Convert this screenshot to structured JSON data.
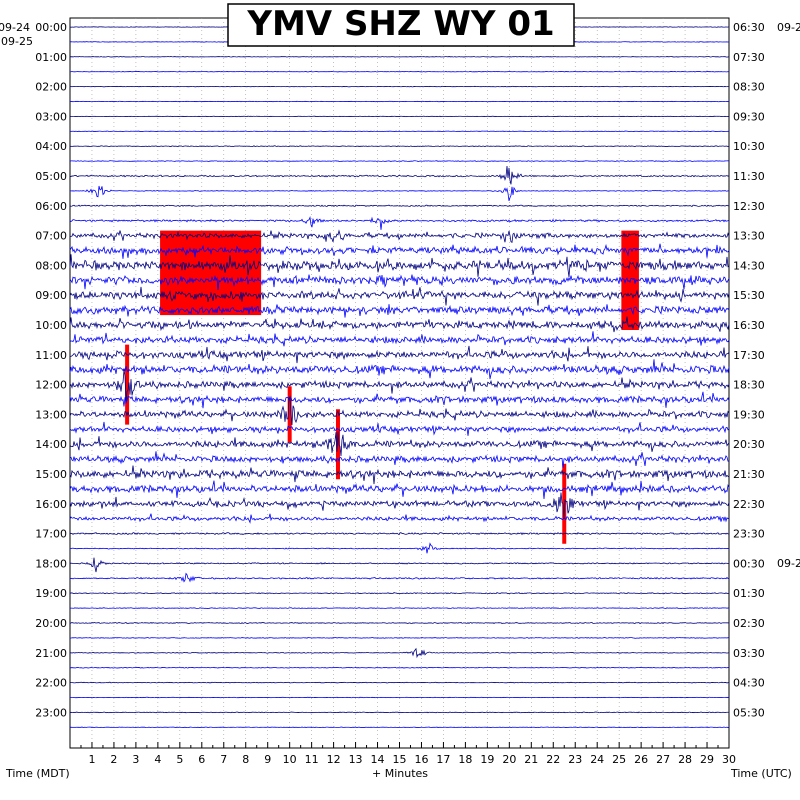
{
  "chart_data": {
    "type": "line",
    "title": "YMV SHZ WY 01",
    "xlabel": "+ Minutes",
    "left_axis_label": "Time (MDT)",
    "right_axis_label": "Time (UTC)",
    "left_date_top": "09-24",
    "left_date_second": "09-25",
    "right_date_top": "09-2",
    "right_date_mid": "09-2",
    "x_range": [
      0,
      30
    ],
    "x_ticks": [
      "1",
      "2",
      "3",
      "4",
      "5",
      "6",
      "7",
      "8",
      "9",
      "10",
      "11",
      "12",
      "13",
      "14",
      "15",
      "16",
      "17",
      "18",
      "19",
      "20",
      "21",
      "22",
      "23",
      "24",
      "25",
      "26",
      "27",
      "28",
      "29",
      "30"
    ],
    "left_hour_labels": [
      "00:00",
      "01:00",
      "02:00",
      "03:00",
      "04:00",
      "05:00",
      "06:00",
      "07:00",
      "08:00",
      "09:00",
      "10:00",
      "11:00",
      "12:00",
      "13:00",
      "14:00",
      "15:00",
      "16:00",
      "17:00",
      "18:00",
      "19:00",
      "20:00",
      "21:00",
      "22:00",
      "23:00"
    ],
    "right_hour_labels": [
      "06:30",
      "07:30",
      "08:30",
      "09:30",
      "10:30",
      "11:30",
      "12:30",
      "13:30",
      "14:30",
      "15:30",
      "16:30",
      "17:30",
      "18:30",
      "19:30",
      "20:30",
      "21:30",
      "22:30",
      "23:30",
      "00:30",
      "01:30",
      "02:30",
      "03:30",
      "04:30",
      "05:30"
    ],
    "trace_count": 48,
    "trace_colors": [
      "#000080",
      "#0000ff"
    ],
    "clip_color": "#ff0000",
    "grid": true,
    "trace_activity": [
      0.2,
      0.2,
      0.2,
      0.2,
      0.2,
      0.2,
      0.2,
      0.2,
      0.3,
      0.3,
      0.6,
      0.3,
      0.5,
      0.8,
      1.8,
      2.6,
      3.5,
      3.2,
      3.0,
      2.8,
      3.0,
      2.6,
      2.8,
      3.2,
      2.5,
      2.6,
      2.4,
      2.2,
      2.6,
      2.4,
      3.0,
      2.8,
      2.2,
      1.6,
      0.7,
      0.4,
      0.5,
      0.6,
      0.4,
      0.3,
      0.4,
      0.3,
      0.3,
      0.3,
      0.3,
      0.2,
      0.3,
      0.2
    ],
    "events": [
      {
        "trace": 10,
        "minute": 20.0,
        "amp": 20
      },
      {
        "trace": 11,
        "minute": 1.3,
        "amp": 16
      },
      {
        "trace": 11,
        "minute": 20.0,
        "amp": 14
      },
      {
        "trace": 13,
        "minute": 11.0,
        "amp": 10
      },
      {
        "trace": 13,
        "minute": 14.1,
        "amp": 12
      },
      {
        "trace": 14,
        "minute": 12.0,
        "amp": 12
      },
      {
        "trace": 14,
        "minute": 20.0,
        "amp": 10
      },
      {
        "trace": 24,
        "minute": 2.6,
        "amp": 40
      },
      {
        "trace": 26,
        "minute": 10.0,
        "amp": 28
      },
      {
        "trace": 28,
        "minute": 12.2,
        "amp": 35
      },
      {
        "trace": 32,
        "minute": 22.5,
        "amp": 40
      },
      {
        "trace": 35,
        "minute": 16.3,
        "amp": 10
      },
      {
        "trace": 36,
        "minute": 1.2,
        "amp": 10
      },
      {
        "trace": 37,
        "minute": 5.3,
        "amp": 10
      },
      {
        "trace": 42,
        "minute": 15.8,
        "amp": 10
      }
    ],
    "clip_blocks": [
      {
        "trace_start": 14,
        "trace_end": 19,
        "minute_start": 4.1,
        "minute_end": 8.7
      },
      {
        "trace_start": 14,
        "trace_end": 20,
        "minute_start": 25.1,
        "minute_end": 25.9
      }
    ]
  }
}
